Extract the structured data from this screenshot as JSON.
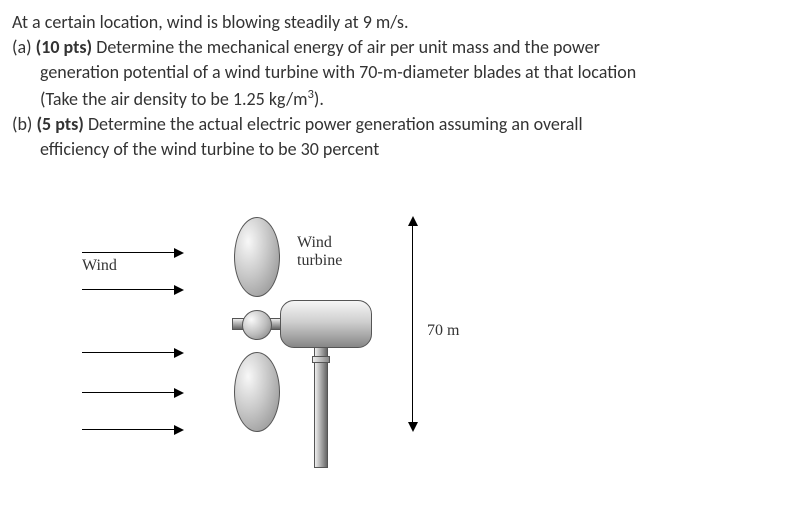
{
  "problem": {
    "intro": "At a certain location, wind is blowing steadily at 9 m/s.",
    "part_a_label": "(a)",
    "part_a_points": "(10 pts)",
    "part_a_l1": " Determine the mechanical energy of air per unit mass and the power",
    "part_a_l2": "generation potential of a wind turbine with 70-m-diameter blades at that location",
    "part_a_l3_pre": "(Take the air density to be 1.25 kg/m",
    "part_a_l3_post": ").",
    "part_b_label": "(b)",
    "part_b_points": "(5 pts)",
    "part_b_l1": " Determine the actual electric power generation assuming an overall",
    "part_b_l2": "efficiency of the wind turbine to be 30 percent"
  },
  "figure": {
    "wind_label": "Wind",
    "turbine_label_l1": "Wind",
    "turbine_label_l2": "turbine",
    "diameter_label": "70 m",
    "colors": {
      "text": "#333333",
      "line": "#000000",
      "grad_light": "#f6f6f6",
      "grad_mid": "#cfcfcf",
      "grad_dark": "#878787"
    }
  }
}
